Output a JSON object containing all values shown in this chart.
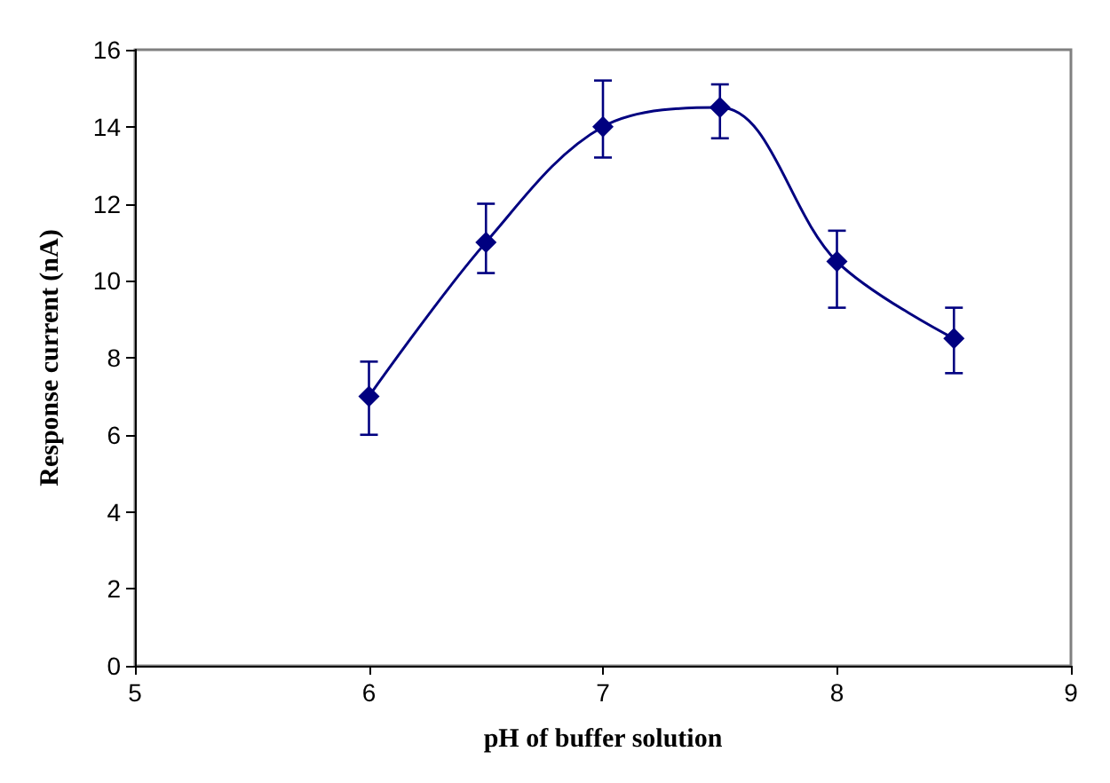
{
  "chart_data": {
    "type": "line",
    "xlabel": "pH of buffer solution",
    "ylabel": "Response current (nA)",
    "x": [
      6,
      6.5,
      7,
      7.5,
      8,
      8.5
    ],
    "series": [
      {
        "color": "#000080",
        "values": [
          7,
          11,
          14,
          14.5,
          10.5,
          8.5
        ],
        "errors": [
          [
            6.0,
            7.9
          ],
          [
            10.2,
            12.0
          ],
          [
            13.2,
            15.2
          ],
          [
            13.7,
            15.1
          ],
          [
            9.3,
            11.3
          ],
          [
            7.6,
            9.3
          ]
        ]
      }
    ],
    "xlim": [
      5,
      9
    ],
    "xticks": [
      5,
      6,
      7,
      8,
      9
    ],
    "ylim": [
      0,
      16
    ],
    "yticks": [
      0,
      2,
      4,
      6,
      8,
      10,
      12,
      14,
      16
    ],
    "grid": false,
    "marker": "diamond",
    "line_style": "solid"
  }
}
